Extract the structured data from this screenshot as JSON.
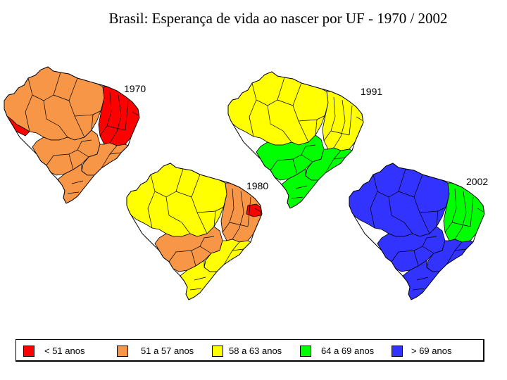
{
  "title": "Brasil: Esperança de vida ao nascer por UF - 1970 / 2002",
  "colors": {
    "lt51": "#ff0000",
    "51_57": "#f79646",
    "58_63": "#ffff00",
    "64_69": "#00ff00",
    "gt69": "#3333ff",
    "border": "#000000"
  },
  "maps": [
    {
      "year": "1970",
      "regions": {
        "north": "51_57",
        "northeast": "lt51",
        "center_west": "51_57",
        "southeast": "51_57",
        "south": "51_57",
        "west_tip": "lt51"
      }
    },
    {
      "year": "1980",
      "regions": {
        "north": "58_63",
        "northeast": "51_57",
        "center_west": "51_57",
        "southeast": "58_63",
        "south": "58_63",
        "northeast_spot": "lt51"
      }
    },
    {
      "year": "1991",
      "regions": {
        "north": "58_63",
        "northeast": "58_63",
        "center_west": "64_69",
        "southeast": "64_69",
        "south": "64_69"
      }
    },
    {
      "year": "2002",
      "regions": {
        "north": "gt69",
        "northeast": "64_69",
        "center_west": "gt69",
        "southeast": "gt69",
        "south": "gt69"
      }
    }
  ],
  "legend": [
    {
      "label": "< 51 anos",
      "color_key": "lt51"
    },
    {
      "label": "51 a 57 anos",
      "color_key": "51_57"
    },
    {
      "label": "58 a 63 anos",
      "color_key": "58_63"
    },
    {
      "label": "64 a 69 anos",
      "color_key": "64_69"
    },
    {
      "label": "> 69 anos",
      "color_key": "gt69"
    }
  ]
}
